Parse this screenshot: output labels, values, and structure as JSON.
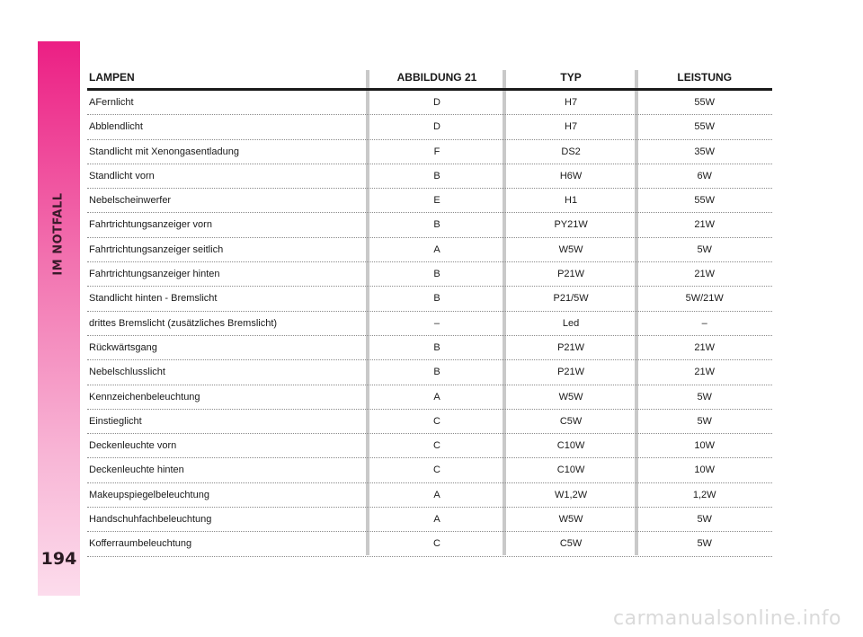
{
  "sidebar": {
    "title": "IM NOTFALL",
    "page_number": "194"
  },
  "table": {
    "headers": {
      "lampe": "LAMPEN",
      "abbildung": "ABBILDUNG 21",
      "typ": "TYP",
      "leistung": "LEISTUNG"
    },
    "rows": [
      {
        "lampe": "AFernlicht",
        "abbildung": "D",
        "typ": "H7",
        "leistung": "55W"
      },
      {
        "lampe": "Abblendlicht",
        "abbildung": "D",
        "typ": "H7",
        "leistung": "55W"
      },
      {
        "lampe": "Standlicht mit Xenongasentladung",
        "abbildung": "F",
        "typ": "DS2",
        "leistung": "35W"
      },
      {
        "lampe": "Standlicht vorn",
        "abbildung": "B",
        "typ": "H6W",
        "leistung": "6W"
      },
      {
        "lampe": "Nebelscheinwerfer",
        "abbildung": "E",
        "typ": "H1",
        "leistung": "55W"
      },
      {
        "lampe": "Fahrtrichtungsanzeiger vorn",
        "abbildung": "B",
        "typ": "PY21W",
        "leistung": "21W"
      },
      {
        "lampe": "Fahrtrichtungsanzeiger seitlich",
        "abbildung": "A",
        "typ": "W5W",
        "leistung": "5W"
      },
      {
        "lampe": "Fahrtrichtungsanzeiger hinten",
        "abbildung": "B",
        "typ": "P21W",
        "leistung": "21W"
      },
      {
        "lampe": "Standlicht hinten - Bremslicht",
        "abbildung": "B",
        "typ": "P21/5W",
        "leistung": "5W/21W"
      },
      {
        "lampe": "drittes Bremslicht (zusätzliches Bremslicht)",
        "abbildung": "–",
        "typ": "Led",
        "leistung": "–"
      },
      {
        "lampe": "Rückwärtsgang",
        "abbildung": "B",
        "typ": "P21W",
        "leistung": "21W"
      },
      {
        "lampe": "Nebelschlusslicht",
        "abbildung": "B",
        "typ": "P21W",
        "leistung": "21W"
      },
      {
        "lampe": "Kennzeichenbeleuchtung",
        "abbildung": "A",
        "typ": "W5W",
        "leistung": "5W"
      },
      {
        "lampe": "Einstieglicht",
        "abbildung": "C",
        "typ": "C5W",
        "leistung": "5W"
      },
      {
        "lampe": "Deckenleuchte vorn",
        "abbildung": "C",
        "typ": "C10W",
        "leistung": "10W"
      },
      {
        "lampe": "Deckenleuchte hinten",
        "abbildung": "C",
        "typ": "C10W",
        "leistung": "10W"
      },
      {
        "lampe": "Makeupspiegelbeleuchtung",
        "abbildung": "A",
        "typ": "W1,2W",
        "leistung": "1,2W"
      },
      {
        "lampe": "Handschuhfachbeleuchtung",
        "abbildung": "A",
        "typ": "W5W",
        "leistung": "5W"
      },
      {
        "lampe": "Kofferraumbeleuchtung",
        "abbildung": "C",
        "typ": "C5W",
        "leistung": "5W"
      }
    ]
  },
  "watermark": "carmanualsonline.info"
}
